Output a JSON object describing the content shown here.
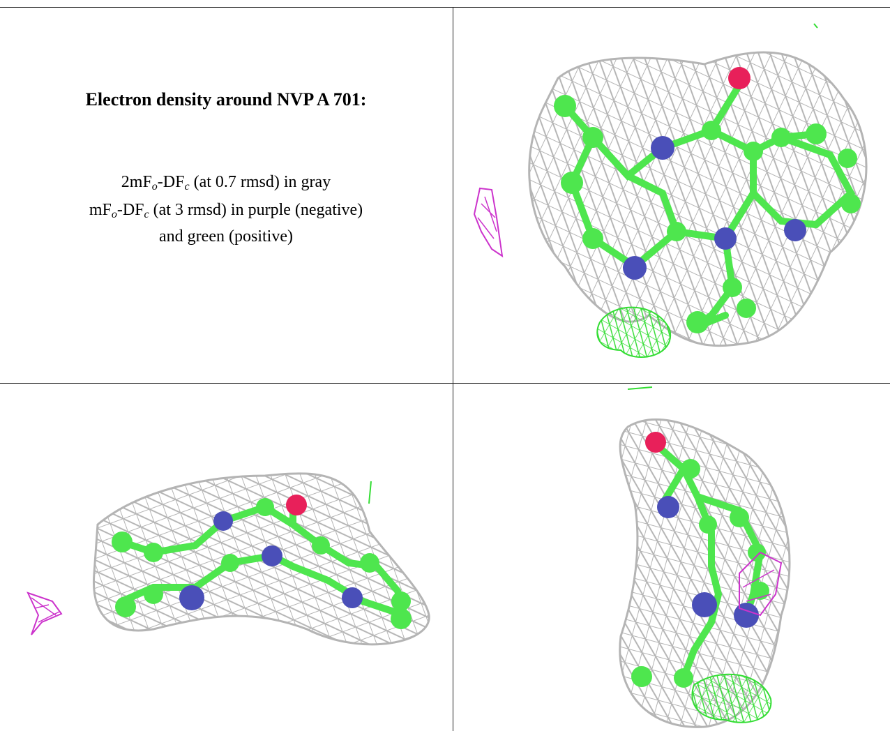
{
  "caption": {
    "title": "Electron density around NVP A 701:",
    "line1_pre": "2mF",
    "line1_sub1": "o",
    "line1_mid": "-DF",
    "line1_sub2": "c",
    "line1_post": " (at 0.7 rmsd) in gray",
    "line2_pre": "mF",
    "line2_sub1": "o",
    "line2_mid": "-DF",
    "line2_sub2": "c",
    "line2_post": " (at 3 rmsd) in purple (negative)",
    "line3": "and green (positive)"
  },
  "colors": {
    "mesh_gray": "#b4b4b4",
    "carbon_green": "#4ee64e",
    "nitrogen_blue": "#4a4fb8",
    "oxygen_red": "#e8205a",
    "negative_purple": "#cc33cc",
    "positive_green": "#33dd33"
  },
  "views": [
    "top-view",
    "side-view",
    "end-view"
  ]
}
